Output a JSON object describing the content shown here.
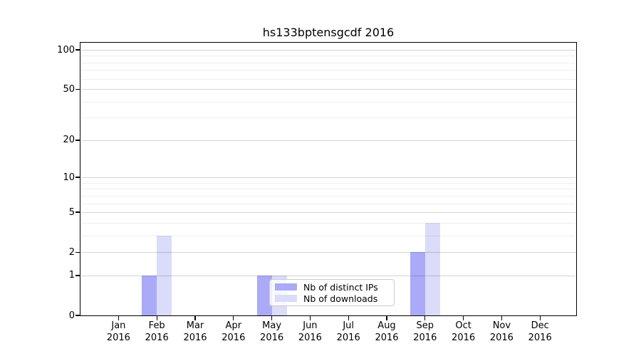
{
  "title": "hs133bptensgcdf 2016",
  "chart_data": {
    "type": "bar",
    "title": "hs133bptensgcdf 2016",
    "categories": [
      "Jan 2016",
      "Feb 2016",
      "Mar 2016",
      "Apr 2016",
      "May 2016",
      "Jun 2016",
      "Jul 2016",
      "Aug 2016",
      "Sep 2016",
      "Oct 2016",
      "Nov 2016",
      "Dec 2016"
    ],
    "category_month_labels": [
      "Jan",
      "Feb",
      "Mar",
      "Apr",
      "May",
      "Jun",
      "Jul",
      "Aug",
      "Sep",
      "Oct",
      "Nov",
      "Dec"
    ],
    "category_year_labels": [
      "2016",
      "2016",
      "2016",
      "2016",
      "2016",
      "2016",
      "2016",
      "2016",
      "2016",
      "2016",
      "2016",
      "2016"
    ],
    "series": [
      {
        "name": "Nb of distinct IPs",
        "color": "#aaaaf9",
        "values": [
          0,
          1,
          0,
          0,
          1,
          0,
          0,
          0,
          2,
          0,
          0,
          0
        ]
      },
      {
        "name": "Nb of downloads",
        "color": "#dbdbfa",
        "values": [
          0,
          3,
          0,
          0,
          1,
          0,
          0,
          0,
          4,
          0,
          0,
          0
        ]
      }
    ],
    "yscale": "log1p",
    "ylim": [
      0,
      115
    ],
    "yticks": [
      0,
      1,
      2,
      5,
      10,
      20,
      50,
      100
    ],
    "yticks_minor": [
      3,
      4,
      6,
      7,
      8,
      9,
      30,
      40,
      60,
      70,
      80,
      90
    ],
    "grid": true,
    "legend_position": "lower center",
    "xlabel": "",
    "ylabel": ""
  }
}
